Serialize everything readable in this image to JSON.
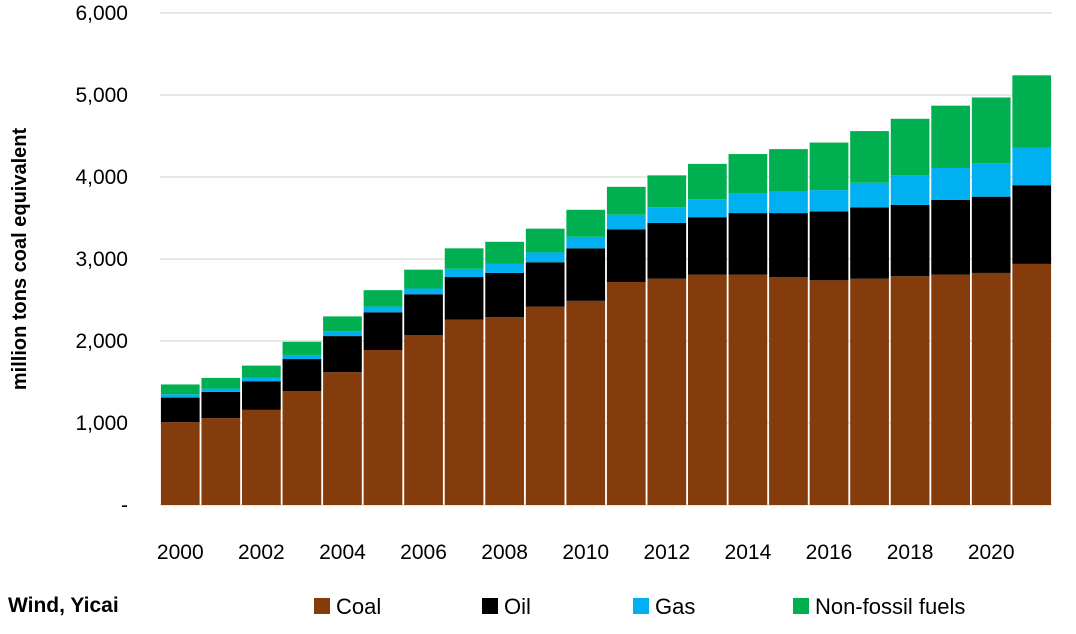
{
  "source": "Wind, Yicai",
  "chart_data": {
    "type": "bar",
    "stacked": true,
    "ylabel": "million tons coal equivalent",
    "ylim": [
      0,
      6000
    ],
    "yticks": [
      0,
      1000,
      2000,
      3000,
      4000,
      5000,
      6000
    ],
    "ytick_labels": [
      "-",
      "1,000",
      "2,000",
      "3,000",
      "4,000",
      "5,000",
      "6,000"
    ],
    "grid": true,
    "legend_position": "bottom",
    "categories": [
      2000,
      2001,
      2002,
      2003,
      2004,
      2005,
      2006,
      2007,
      2008,
      2009,
      2010,
      2011,
      2012,
      2013,
      2014,
      2015,
      2016,
      2017,
      2018,
      2019,
      2020,
      2021
    ],
    "xtick_labels": [
      "2000",
      "2002",
      "2004",
      "2006",
      "2008",
      "2010",
      "2012",
      "2014",
      "2016",
      "2018",
      "2020"
    ],
    "series": [
      {
        "name": "Coal",
        "color": "#843C0C",
        "values": [
          1010,
          1060,
          1160,
          1390,
          1620,
          1890,
          2070,
          2260,
          2290,
          2420,
          2490,
          2720,
          2760,
          2810,
          2810,
          2780,
          2740,
          2760,
          2790,
          2810,
          2830,
          2940
        ]
      },
      {
        "name": "Oil",
        "color": "#000000",
        "values": [
          300,
          320,
          350,
          390,
          440,
          460,
          500,
          520,
          540,
          540,
          640,
          640,
          680,
          700,
          750,
          780,
          840,
          870,
          870,
          910,
          930,
          960
        ]
      },
      {
        "name": "Gas",
        "color": "#00B0F0",
        "values": [
          40,
          40,
          40,
          50,
          60,
          70,
          70,
          100,
          110,
          120,
          140,
          180,
          190,
          220,
          240,
          260,
          260,
          300,
          360,
          390,
          410,
          460
        ]
      },
      {
        "name": "Non-fossil fuels",
        "color": "#00B050",
        "values": [
          120,
          130,
          150,
          160,
          180,
          200,
          230,
          250,
          270,
          290,
          330,
          340,
          390,
          430,
          480,
          520,
          580,
          630,
          690,
          760,
          800,
          880
        ]
      }
    ]
  }
}
